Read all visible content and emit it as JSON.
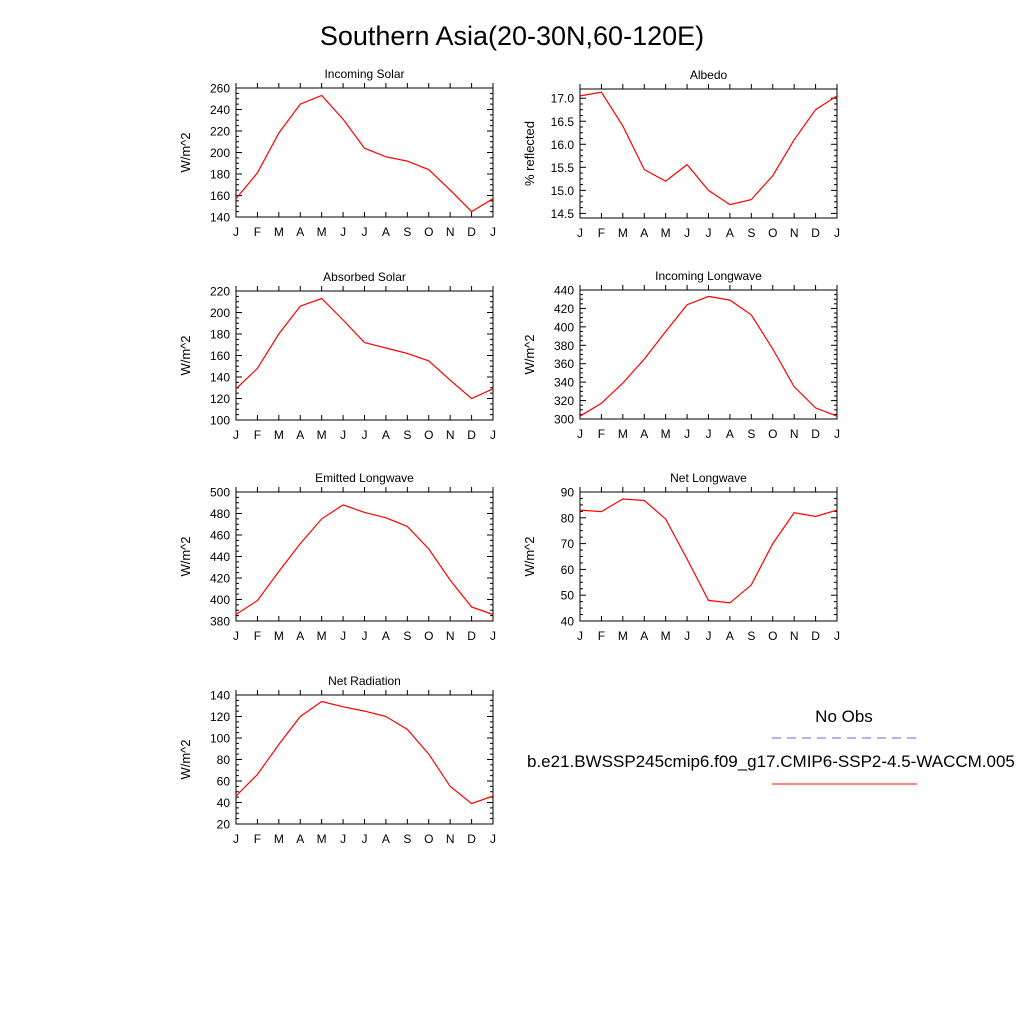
{
  "title": "Southern Asia(20-30N,60-120E)",
  "months": [
    "J",
    "F",
    "M",
    "A",
    "M",
    "J",
    "J",
    "A",
    "S",
    "O",
    "N",
    "D",
    "J"
  ],
  "legend": {
    "obs_label": "No Obs",
    "model_label": "b.e21.BWSSP245cmip6.f09_g17.CMIP6-SSP2-4.5-WACCM.005",
    "obs_color": "#6666ee",
    "model_color": "#ff0000"
  },
  "colors": {
    "line": "#ff0000",
    "axis": "#000000"
  },
  "chart_data": [
    {
      "type": "line",
      "title": "Incoming Solar",
      "ylabel": "W/m^2",
      "ylim": [
        140,
        260
      ],
      "yticks": [
        "140",
        "160",
        "180",
        "200",
        "220",
        "240",
        "260"
      ],
      "series": [
        {
          "values": [
            157,
            181,
            218,
            245,
            253,
            231,
            204,
            196,
            192,
            184,
            165,
            145,
            157
          ]
        }
      ]
    },
    {
      "type": "line",
      "title": "Albedo",
      "ylabel": "% reflected",
      "ylim": [
        14.4,
        17.2
      ],
      "yticks": [
        "14.5",
        "15.0",
        "15.5",
        "16.0",
        "16.5",
        "17.0"
      ],
      "series": [
        {
          "values": [
            17.05,
            17.13,
            16.4,
            15.45,
            15.2,
            15.56,
            15.0,
            14.69,
            14.8,
            15.32,
            16.1,
            16.75,
            17.05
          ]
        }
      ]
    },
    {
      "type": "line",
      "title": "Absorbed Solar",
      "ylabel": "W/m^2",
      "ylim": [
        100,
        220
      ],
      "yticks": [
        "100",
        "120",
        "140",
        "160",
        "180",
        "200",
        "220"
      ],
      "series": [
        {
          "values": [
            129,
            148,
            180,
            206,
            213,
            193,
            172,
            167,
            162,
            155,
            137,
            120,
            129
          ]
        }
      ]
    },
    {
      "type": "line",
      "title": "Incoming Longwave",
      "ylabel": "W/m^2",
      "ylim": [
        300,
        440
      ],
      "yticks": [
        "300",
        "320",
        "340",
        "360",
        "380",
        "400",
        "420",
        "440"
      ],
      "series": [
        {
          "values": [
            303,
            317,
            339,
            365,
            395,
            424,
            433,
            429,
            413,
            376,
            335,
            312,
            303
          ]
        }
      ]
    },
    {
      "type": "line",
      "title": "Emitted Longwave",
      "ylabel": "W/m^2",
      "ylim": [
        380,
        500
      ],
      "yticks": [
        "380",
        "400",
        "420",
        "440",
        "460",
        "480",
        "500"
      ],
      "series": [
        {
          "values": [
            386,
            399,
            426,
            452,
            475,
            488,
            481,
            476,
            468,
            447,
            418,
            393,
            386
          ]
        }
      ]
    },
    {
      "type": "line",
      "title": "Net Longwave",
      "ylabel": "W/m^2",
      "ylim": [
        40,
        90
      ],
      "yticks": [
        "40",
        "50",
        "60",
        "70",
        "80",
        "90"
      ],
      "series": [
        {
          "values": [
            83,
            82.4,
            87.3,
            86.7,
            79.5,
            64,
            48,
            47,
            54,
            70,
            82,
            80.5,
            83
          ]
        }
      ]
    },
    {
      "type": "line",
      "title": "Net Radiation",
      "ylabel": "W/m^2",
      "ylim": [
        20,
        140
      ],
      "yticks": [
        "20",
        "40",
        "60",
        "80",
        "100",
        "120",
        "140"
      ],
      "series": [
        {
          "values": [
            46,
            66,
            94,
            120,
            134,
            129,
            125,
            120,
            108,
            85,
            55,
            39,
            46
          ]
        }
      ]
    }
  ]
}
